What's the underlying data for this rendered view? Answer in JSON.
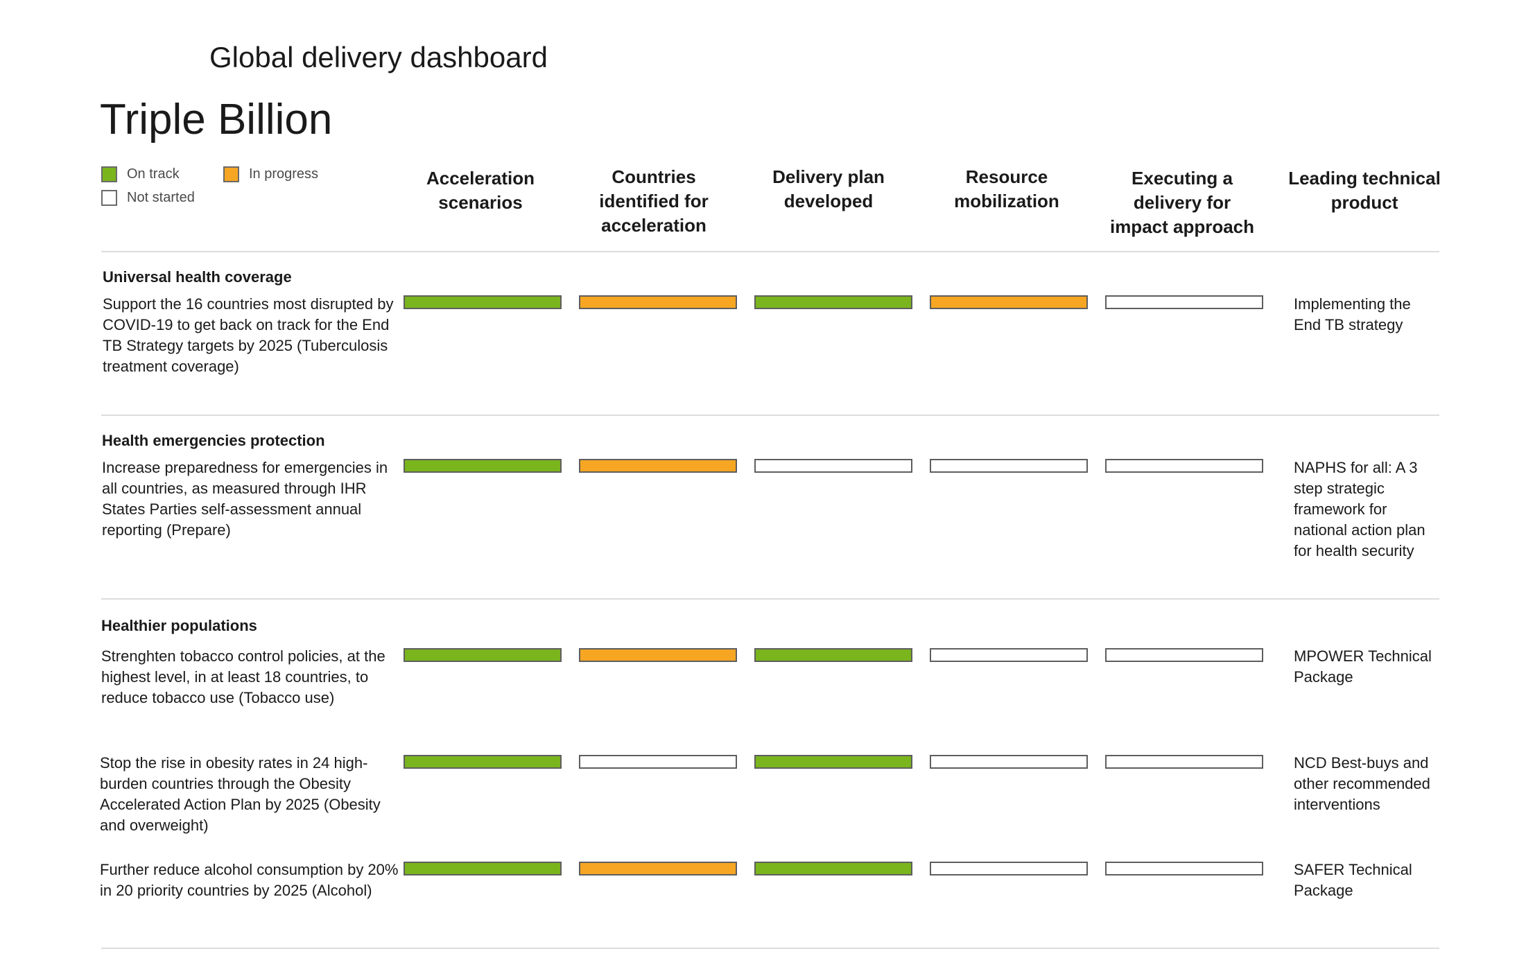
{
  "header": {
    "subtitle": "Global delivery dashboard",
    "title": "Triple Billion"
  },
  "legend": [
    {
      "label": "On track",
      "status": "on_track"
    },
    {
      "label": "In progress",
      "status": "in_progress"
    },
    {
      "label": "Not started",
      "status": "not_started"
    }
  ],
  "colors": {
    "on_track": "#7ab51d",
    "in_progress": "#f6a623",
    "not_started": "#ffffff"
  },
  "columns": [
    "Acceleration scenarios",
    "Countries identified for acceleration",
    "Delivery plan developed",
    "Resource mobilization",
    "Executing a delivery for impact approach",
    "Leading technical product"
  ],
  "sections": [
    {
      "title": "Universal health coverage",
      "rows": [
        {
          "description": "Support the 16 countries most disrupted by COVID-19 to get back on track for the End TB Strategy targets by 2025 (Tuberculosis treatment coverage)",
          "statuses": [
            "on_track",
            "in_progress",
            "on_track",
            "in_progress",
            "not_started"
          ],
          "product": "Implementing the End TB strategy"
        }
      ]
    },
    {
      "title": "Health emergencies protection",
      "rows": [
        {
          "description": "Increase preparedness for emergencies in all countries, as measured through IHR States Parties self-assessment annual reporting (Prepare)",
          "statuses": [
            "on_track",
            "in_progress",
            "not_started",
            "not_started",
            "not_started"
          ],
          "product": "NAPHS for all: A 3 step strategic framework for national action plan for health security"
        }
      ]
    },
    {
      "title": "Healthier populations",
      "rows": [
        {
          "description": "Strenghten tobacco control policies, at the highest level, in at least 18 countries, to reduce tobacco use (Tobacco use)",
          "statuses": [
            "on_track",
            "in_progress",
            "on_track",
            "not_started",
            "not_started"
          ],
          "product": "MPOWER Technical Package"
        },
        {
          "description": "Stop the rise in obesity rates in 24 high-burden countries through the Obesity Accelerated Action Plan by 2025 (Obesity and overweight)",
          "statuses": [
            "on_track",
            "not_started",
            "on_track",
            "not_started",
            "not_started"
          ],
          "product": "NCD Best-buys and other recommended interventions"
        },
        {
          "description": "Further reduce alcohol consumption by 20% in 20 priority countries by 2025 (Alcohol)",
          "statuses": [
            "on_track",
            "in_progress",
            "on_track",
            "not_started",
            "not_started"
          ],
          "product": "SAFER Technical Package"
        }
      ]
    }
  ]
}
